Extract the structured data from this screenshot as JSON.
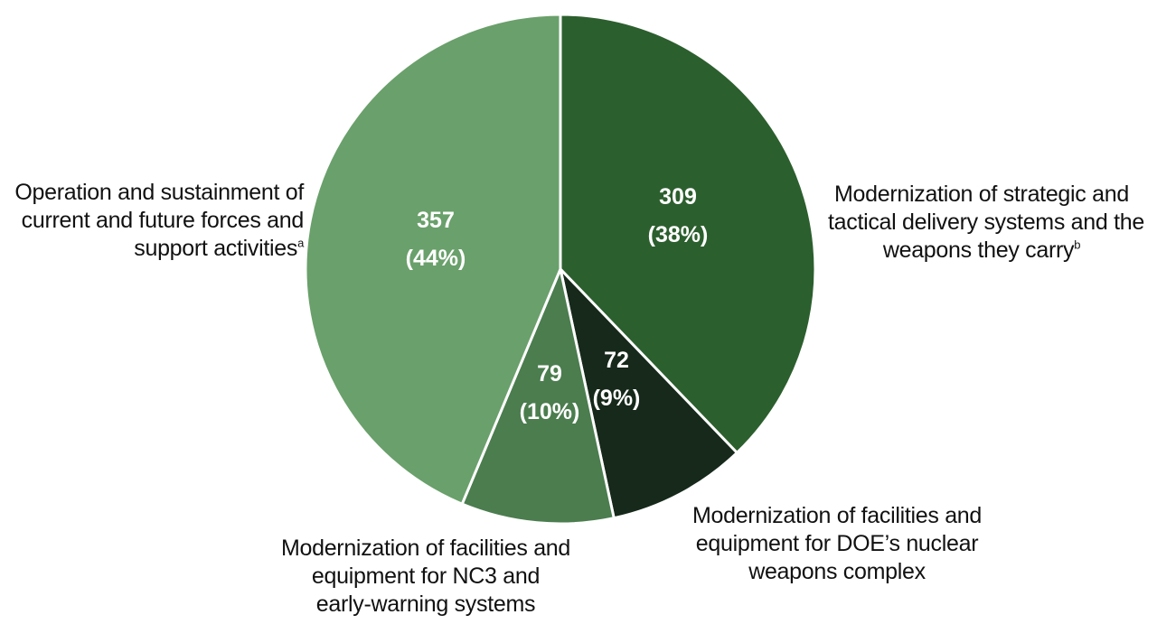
{
  "chart_data": {
    "type": "pie",
    "slices": [
      {
        "label_lines": [
          "Modernization of strategic and",
          "tactical delivery systems and the",
          "weapons they carry"
        ],
        "footnote": "b",
        "value": 309,
        "percent_label": "(38%)",
        "color": "#2c5f2e"
      },
      {
        "label_lines": [
          "Modernization of facilities and",
          "equipment for DOE’s nuclear",
          "weapons complex"
        ],
        "footnote": "",
        "value": 72,
        "percent_label": "(9%)",
        "color": "#16291a"
      },
      {
        "label_lines": [
          "Modernization of facilities and",
          "equipment for NC3 and",
          "early-warning systems"
        ],
        "footnote": "",
        "value": 79,
        "percent_label": "(10%)",
        "color": "#4b7d4f"
      },
      {
        "label_lines": [
          "Operation and sustainment of",
          "current and future forces and",
          "support activities"
        ],
        "footnote": "a",
        "value": 357,
        "percent_label": "(44%)",
        "color": "#6aa06b"
      }
    ],
    "start_angle": "12 o'clock",
    "direction": "clockwise",
    "legend": "none"
  }
}
